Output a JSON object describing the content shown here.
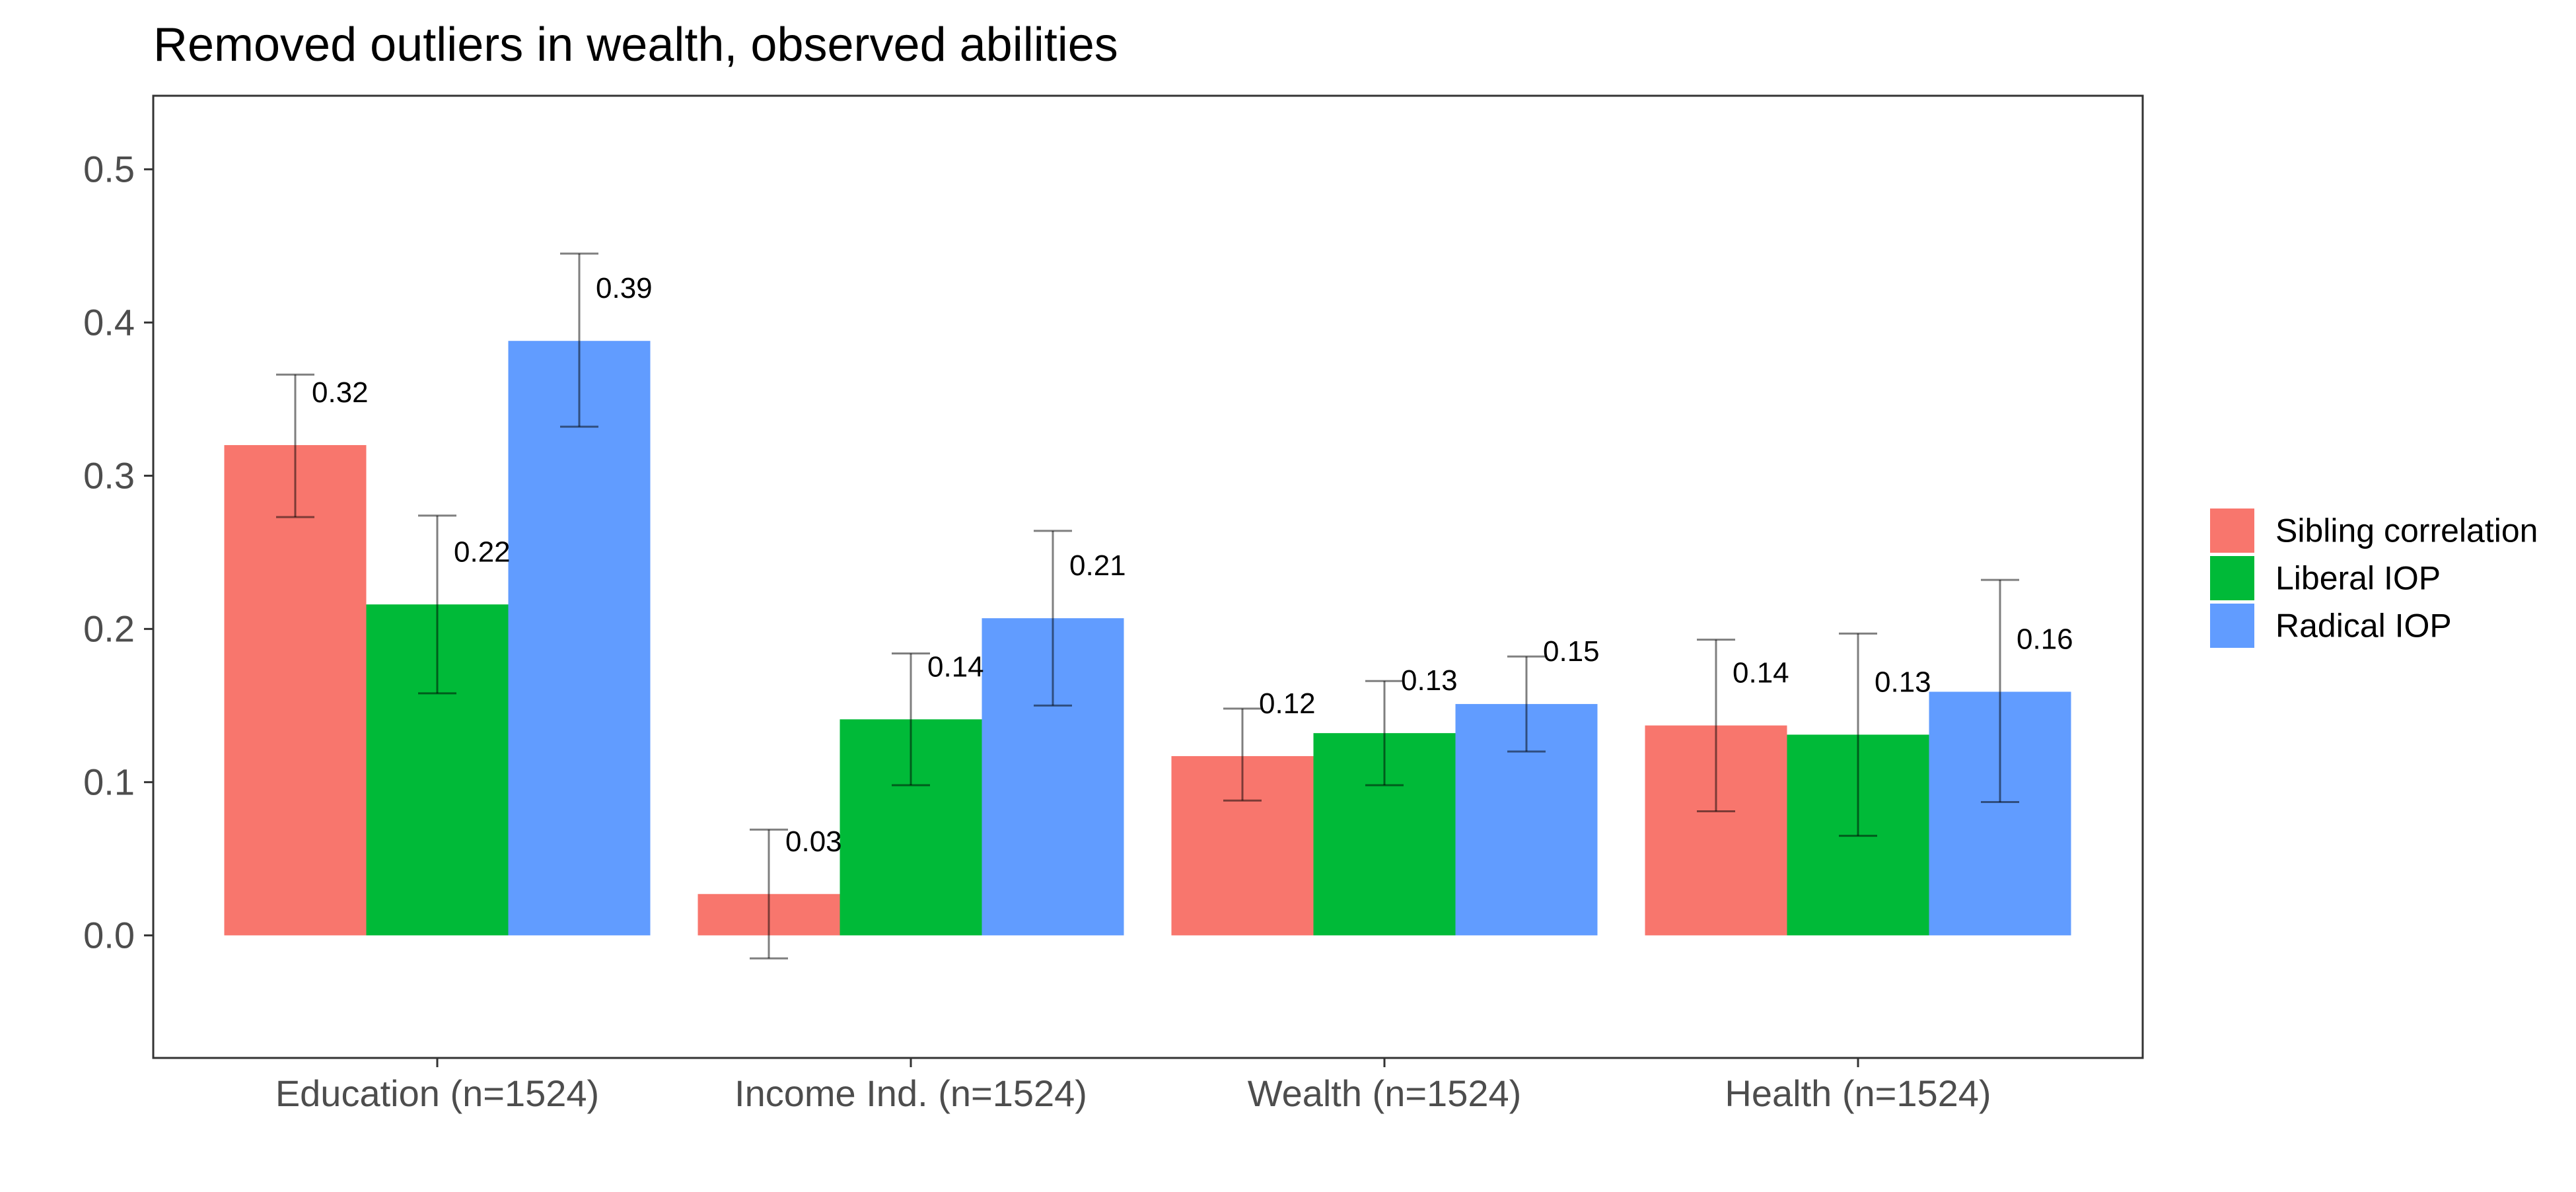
{
  "chart_data": {
    "type": "bar",
    "title": "Removed outliers in wealth, observed abilities",
    "xlabel": "",
    "ylabel": "",
    "categories": [
      "Education (n=1524)",
      "Income Ind. (n=1524)",
      "Wealth (n=1524)",
      "Health (n=1524)"
    ],
    "ylim": [
      -0.08,
      0.5
    ],
    "yticks": [
      0.0,
      0.1,
      0.2,
      0.3,
      0.4,
      0.5
    ],
    "ytick_labels": [
      "0.0",
      "0.1",
      "0.2",
      "0.3",
      "0.4",
      "0.5"
    ],
    "grid": false,
    "legend_position": "right",
    "series": [
      {
        "name": "Sibling correlation",
        "color": "#F8766D",
        "values": [
          0.32,
          0.027,
          0.117,
          0.137
        ],
        "labels": [
          "0.32",
          "0.03",
          "0.12",
          "0.14"
        ],
        "ci_low": [
          0.273,
          -0.015,
          0.088,
          0.081
        ],
        "ci_high": [
          0.366,
          0.069,
          0.148,
          0.193
        ]
      },
      {
        "name": "Liberal IOP",
        "color": "#00BA38",
        "values": [
          0.216,
          0.141,
          0.132,
          0.131
        ],
        "labels": [
          "0.22",
          "0.14",
          "0.13",
          "0.13"
        ],
        "ci_low": [
          0.158,
          0.098,
          0.098,
          0.065
        ],
        "ci_high": [
          0.274,
          0.184,
          0.166,
          0.197
        ]
      },
      {
        "name": "Radical IOP",
        "color": "#619CFF",
        "values": [
          0.388,
          0.207,
          0.151,
          0.159
        ],
        "labels": [
          "0.39",
          "0.21",
          "0.15",
          "0.16"
        ],
        "ci_low": [
          0.332,
          0.15,
          0.12,
          0.087
        ],
        "ci_high": [
          0.445,
          0.264,
          0.182,
          0.232
        ]
      }
    ]
  }
}
